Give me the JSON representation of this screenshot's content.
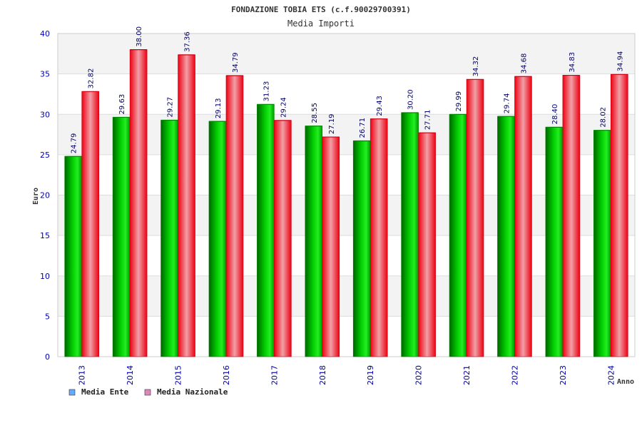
{
  "chart_data": {
    "type": "bar",
    "title": "FONDAZIONE TOBIA ETS (c.f.90029700391)",
    "subtitle": "Media Importi",
    "xlabel": "Anno",
    "ylabel": "Euro",
    "ylim": [
      0,
      40
    ],
    "yticks": [
      "0",
      "5",
      "10",
      "15",
      "20",
      "25",
      "30",
      "35",
      "40"
    ],
    "categories": [
      "2013",
      "2014",
      "2015",
      "2016",
      "2017",
      "2018",
      "2019",
      "2020",
      "2021",
      "2022",
      "2023",
      "2024"
    ],
    "series": [
      {
        "name": "Media Ente",
        "color": "#00cc00",
        "legend_color": "#66aaff",
        "values": [
          24.79,
          29.63,
          29.27,
          29.13,
          31.23,
          28.55,
          26.71,
          30.2,
          29.99,
          29.74,
          28.4,
          28.02
        ],
        "labels": [
          "24.79",
          "29.63",
          "29.27",
          "29.13",
          "31.23",
          "28.55",
          "26.71",
          "30.20",
          "29.99",
          "29.74",
          "28.40",
          "28.02"
        ]
      },
      {
        "name": "Media Nazionale",
        "color": "#ee1122",
        "legend_color": "#dd88bb",
        "values": [
          32.82,
          38.0,
          37.36,
          34.79,
          29.24,
          27.19,
          29.43,
          27.71,
          34.32,
          34.68,
          34.83,
          34.94
        ],
        "labels": [
          "32.82",
          "38.00",
          "37.36",
          "34.79",
          "29.24",
          "27.19",
          "29.43",
          "27.71",
          "34.32",
          "34.68",
          "34.83",
          "34.94"
        ]
      }
    ],
    "grid": true,
    "legend_position": "bottom-left"
  }
}
